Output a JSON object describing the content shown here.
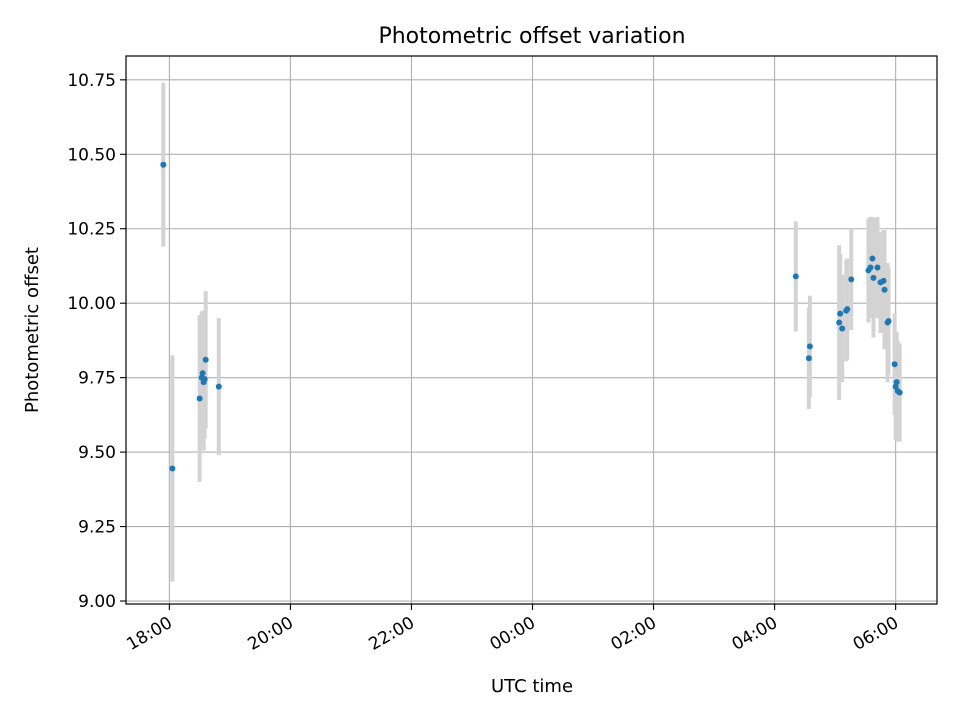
{
  "chart_data": {
    "type": "scatter",
    "title": "Photometric offset variation",
    "xlabel": "UTC time",
    "ylabel": "Photometric offset",
    "xlim": [
      "17:17",
      "06:41"
    ],
    "ylim": [
      8.99,
      10.83
    ],
    "x_axis_type": "time (HH:MM, crosses midnight)",
    "x_ticks": [
      "18:00",
      "20:00",
      "22:00",
      "00:00",
      "02:00",
      "04:00",
      "06:00"
    ],
    "y_ticks": [
      "9.00",
      "9.25",
      "9.50",
      "9.75",
      "10.00",
      "10.25",
      "10.50",
      "10.75"
    ],
    "grid": true,
    "colors": {
      "point": "#1f77b4",
      "errorbar": "#d3d3d3",
      "grid": "#b0b0b0"
    },
    "series": [
      {
        "points": [
          {
            "x": "17:54",
            "y": 10.465,
            "err": 0.275
          },
          {
            "x": "18:03",
            "y": 9.445,
            "err": 0.38
          },
          {
            "x": "18:30",
            "y": 9.68,
            "err": 0.28
          },
          {
            "x": "18:32",
            "y": 9.75,
            "err": 0.22
          },
          {
            "x": "18:33",
            "y": 9.765,
            "err": 0.21
          },
          {
            "x": "18:34",
            "y": 9.735,
            "err": 0.23
          },
          {
            "x": "18:35",
            "y": 9.745,
            "err": 0.2
          },
          {
            "x": "18:36",
            "y": 9.81,
            "err": 0.23
          },
          {
            "x": "18:49",
            "y": 9.72,
            "err": 0.23
          },
          {
            "x": "04:21",
            "y": 10.09,
            "err": 0.185
          },
          {
            "x": "04:34",
            "y": 9.815,
            "err": 0.17
          },
          {
            "x": "04:35",
            "y": 9.855,
            "err": 0.17
          },
          {
            "x": "05:04",
            "y": 9.935,
            "err": 0.26
          },
          {
            "x": "05:05",
            "y": 9.965,
            "err": 0.2
          },
          {
            "x": "05:07",
            "y": 9.915,
            "err": 0.18
          },
          {
            "x": "05:11",
            "y": 9.975,
            "err": 0.17
          },
          {
            "x": "05:12",
            "y": 9.98,
            "err": 0.17
          },
          {
            "x": "05:16",
            "y": 10.08,
            "err": 0.17
          },
          {
            "x": "05:33",
            "y": 10.11,
            "err": 0.175
          },
          {
            "x": "05:35",
            "y": 10.12,
            "err": 0.17
          },
          {
            "x": "05:37",
            "y": 10.15,
            "err": 0.14
          },
          {
            "x": "05:38",
            "y": 10.085,
            "err": 0.2
          },
          {
            "x": "05:42",
            "y": 10.12,
            "err": 0.17
          },
          {
            "x": "05:45",
            "y": 10.07,
            "err": 0.17
          },
          {
            "x": "05:48",
            "y": 10.075,
            "err": 0.17
          },
          {
            "x": "05:49",
            "y": 10.045,
            "err": 0.2
          },
          {
            "x": "05:52",
            "y": 9.935,
            "err": 0.2
          },
          {
            "x": "05:53",
            "y": 9.94,
            "err": 0.18
          },
          {
            "x": "05:59",
            "y": 9.795,
            "err": 0.17
          },
          {
            "x": "06:00",
            "y": 9.72,
            "err": 0.18
          },
          {
            "x": "06:01",
            "y": 9.735,
            "err": 0.17
          },
          {
            "x": "06:02",
            "y": 9.705,
            "err": 0.17
          },
          {
            "x": "06:04",
            "y": 9.7,
            "err": 0.165
          }
        ]
      }
    ]
  }
}
